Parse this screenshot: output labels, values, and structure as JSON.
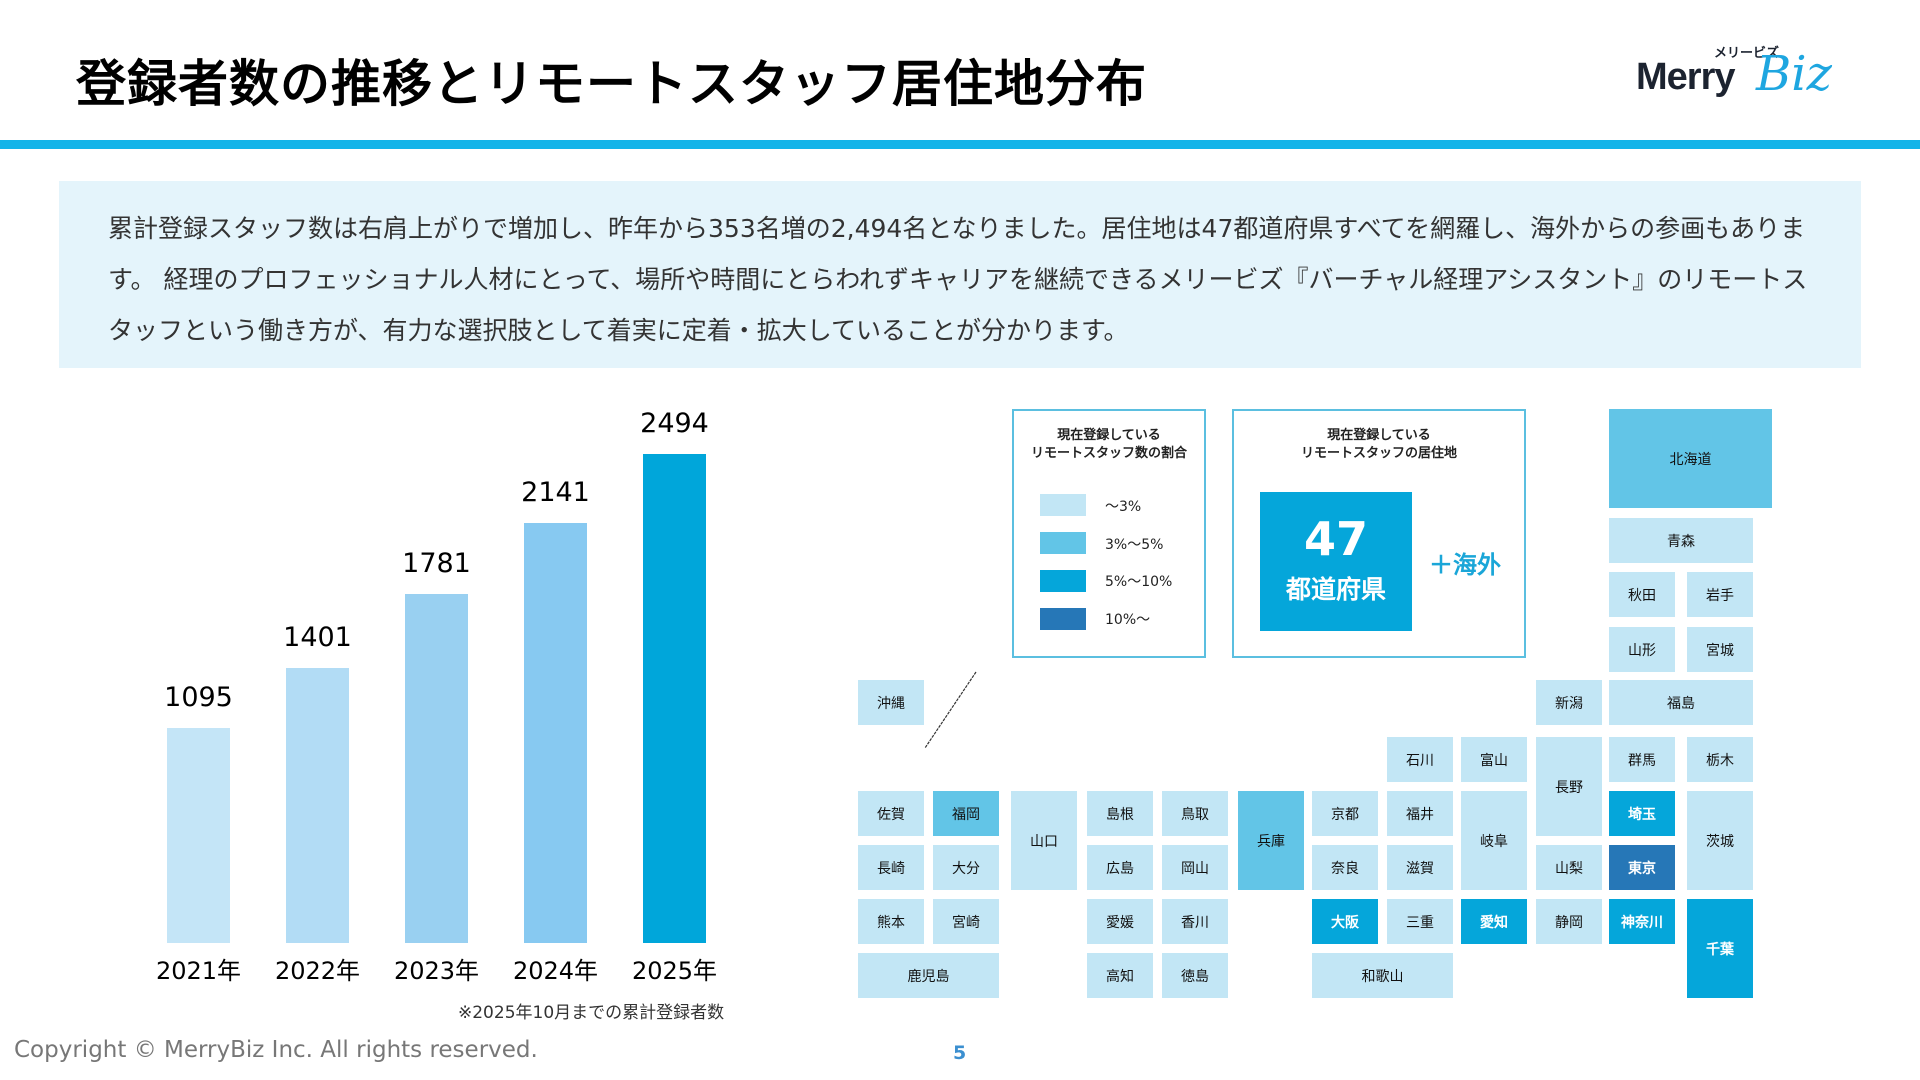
{
  "header": {
    "title": "登録者数の推移とリモートスタッフ居住地分布",
    "logo": {
      "kana": "メリービズ",
      "text_main": "Merry",
      "text_script": "Biz"
    }
  },
  "summary": {
    "text": "累計登録スタッフ数は右肩上がりで増加し、昨年から353名増の2,494名となりました。居住地は47都道府県すべてを網羅し、海外からの参画もあります。 経理のプロフェッショナル人材にとって、場所や時間にとらわれずキャリアを継続できるメリービズ『バーチャル経理アシスタント』のリモートスタッフという働き方が、有力な選択肢として着実に定着・拡大していることが分かります。"
  },
  "chart_data": {
    "type": "bar",
    "title": "",
    "xlabel": "",
    "ylabel": "",
    "categories": [
      "2021年",
      "2022年",
      "2023年",
      "2024年",
      "2025年"
    ],
    "values": [
      1095,
      1401,
      1781,
      2141,
      2494
    ],
    "value_labels": [
      "1095",
      "1401",
      "1781",
      "2141",
      "2494"
    ],
    "colors": [
      "#c4e5f7",
      "#b2dcf5",
      "#99d0f1",
      "#87c9f1",
      "#00a6da"
    ],
    "ylim": [
      0,
      2494
    ],
    "grid": false,
    "legend": "none",
    "note": "※2025年10月までの累計登録者数"
  },
  "legend": {
    "title_lines": [
      "現在登録している",
      "リモートスタッフ数の割合"
    ],
    "items": [
      {
        "label": "〜3%",
        "color": "#c2e6f5"
      },
      {
        "label": "3%〜5%",
        "color": "#62c5e7"
      },
      {
        "label": "5%〜10%",
        "color": "#05a6da"
      },
      {
        "label": "10%〜",
        "color": "#2677b7"
      }
    ]
  },
  "residence": {
    "title_lines": [
      "現在登録している",
      "リモートスタッフの居住地"
    ],
    "count": "47",
    "unit": "都道府県",
    "extra": "＋海外"
  },
  "map": {
    "prefectures": [
      {
        "name": "北海道",
        "level": 2
      },
      {
        "name": "青森",
        "level": 1
      },
      {
        "name": "秋田",
        "level": 1
      },
      {
        "name": "岩手",
        "level": 1
      },
      {
        "name": "山形",
        "level": 1
      },
      {
        "name": "宮城",
        "level": 1
      },
      {
        "name": "新潟",
        "level": 1
      },
      {
        "name": "福島",
        "level": 1
      },
      {
        "name": "石川",
        "level": 1
      },
      {
        "name": "富山",
        "level": 1
      },
      {
        "name": "長野",
        "level": 1
      },
      {
        "name": "群馬",
        "level": 1
      },
      {
        "name": "栃木",
        "level": 1
      },
      {
        "name": "京都",
        "level": 1
      },
      {
        "name": "福井",
        "level": 1
      },
      {
        "name": "岐阜",
        "level": 1
      },
      {
        "name": "埼玉",
        "level": 3
      },
      {
        "name": "茨城",
        "level": 1
      },
      {
        "name": "奈良",
        "level": 1
      },
      {
        "name": "滋賀",
        "level": 1
      },
      {
        "name": "山梨",
        "level": 1
      },
      {
        "name": "東京",
        "level": 4
      },
      {
        "name": "大阪",
        "level": 3
      },
      {
        "name": "三重",
        "level": 1
      },
      {
        "name": "愛知",
        "level": 3
      },
      {
        "name": "静岡",
        "level": 1
      },
      {
        "name": "神奈川",
        "level": 3
      },
      {
        "name": "千葉",
        "level": 3
      },
      {
        "name": "和歌山",
        "level": 1
      },
      {
        "name": "沖縄",
        "level": 1
      },
      {
        "name": "佐賀",
        "level": 1
      },
      {
        "name": "福岡",
        "level": 2
      },
      {
        "name": "長崎",
        "level": 1
      },
      {
        "name": "大分",
        "level": 1
      },
      {
        "name": "熊本",
        "level": 1
      },
      {
        "name": "宮崎",
        "level": 1
      },
      {
        "name": "鹿児島",
        "level": 1
      },
      {
        "name": "山口",
        "level": 1
      },
      {
        "name": "島根",
        "level": 1
      },
      {
        "name": "鳥取",
        "level": 1
      },
      {
        "name": "広島",
        "level": 1
      },
      {
        "name": "岡山",
        "level": 1
      },
      {
        "name": "兵庫",
        "level": 2
      },
      {
        "name": "愛媛",
        "level": 1
      },
      {
        "name": "香川",
        "level": 1
      },
      {
        "name": "高知",
        "level": 1
      },
      {
        "name": "徳島",
        "level": 1
      }
    ]
  },
  "footer": {
    "copyright": "Copyright © MerryBiz Inc. All rights reserved.",
    "page": "5"
  }
}
